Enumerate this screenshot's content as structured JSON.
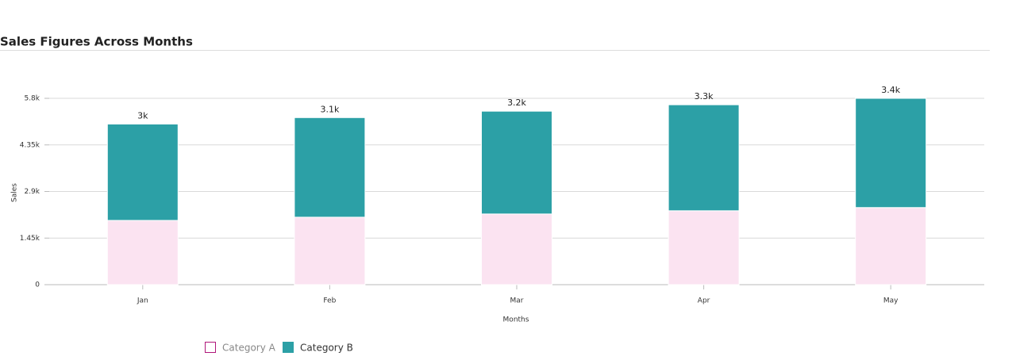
{
  "chart_data": {
    "type": "stacked_bar",
    "title": "Sales Figures Across Months",
    "x_label": "Months",
    "y_label": "Sales",
    "categories": [
      "Jan",
      "Feb",
      "Mar",
      "Apr",
      "May"
    ],
    "series": [
      {
        "name": "Category A",
        "color": "#fbe3f1",
        "values": [
          2000,
          2100,
          2200,
          2300,
          2400
        ]
      },
      {
        "name": "Category B",
        "color": "#2ca0a6",
        "values": [
          3000,
          3100,
          3200,
          3300,
          3400
        ],
        "value_labels": [
          "3k",
          "3.1k",
          "3.2k",
          "3.3k",
          "3.4k"
        ]
      }
    ],
    "ylim": [
      0,
      5800
    ],
    "yticks": [
      0,
      {
        "value": 1450,
        "label": "1.45k"
      },
      {
        "value": 2900,
        "label": "2.9k"
      },
      {
        "value": 4350,
        "label": "4.35k"
      },
      {
        "value": 5800,
        "label": "5.8k"
      }
    ],
    "grid": true
  }
}
